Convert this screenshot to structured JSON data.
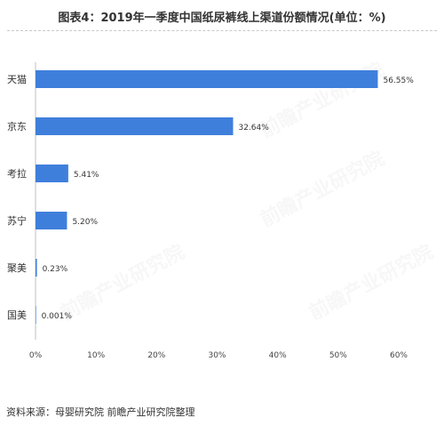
{
  "title": "图表4：2019年一季度中国纸尿裤线上渠道份额情况(单位：%)",
  "source": "资料来源：母婴研究院 前瞻产业研究院整理",
  "chart_data": {
    "type": "bar",
    "orientation": "horizontal",
    "categories": [
      "天猫",
      "京东",
      "考拉",
      "苏宁",
      "聚美",
      "国美"
    ],
    "values": [
      56.55,
      32.64,
      5.41,
      5.2,
      0.23,
      0.001
    ],
    "data_labels": [
      "56.55%",
      "32.64%",
      "5.41%",
      "5.20%",
      "0.23%",
      "0.001%"
    ],
    "xlim": [
      0,
      60
    ],
    "xticks": [
      0,
      10,
      20,
      30,
      40,
      50,
      60
    ],
    "xtick_labels": [
      "0%",
      "10%",
      "20%",
      "30%",
      "40%",
      "50%",
      "60%"
    ],
    "bar_color": "#3f7fdc",
    "grid": false,
    "legend": "none"
  }
}
